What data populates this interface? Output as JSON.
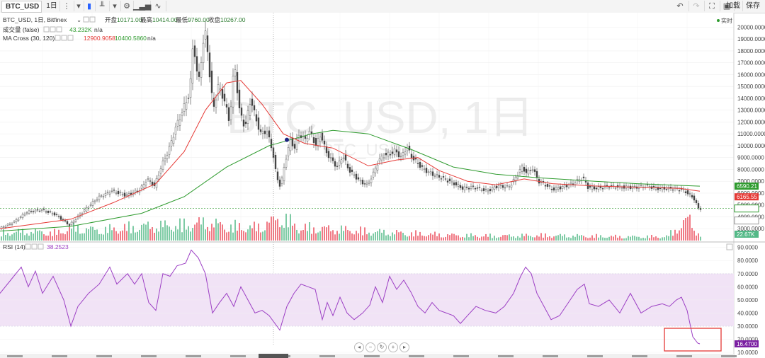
{
  "toolbar": {
    "symbol": "BTC_USD",
    "interval": "1日",
    "add_label": "加载",
    "save_label": "保存"
  },
  "legend": {
    "main": "BTC_USD, 1日, Bitfinex",
    "open_label": "开盘",
    "open": "10171.00",
    "high_label": "最高",
    "high": "10414.00",
    "low_label": "最低",
    "low": "9760.00",
    "close_label": "收盘",
    "close": "10267.00",
    "volume_label": "成交量 (false)",
    "volume_value": "43.232K",
    "volume_na": "n/a",
    "ma_label": "MA Cross (30, 120)",
    "ma_fast": "12900.9058",
    "ma_slow": "10400.5860",
    "ma_na": "n/a",
    "realtime": "实时"
  },
  "watermark": {
    "title": "BTC_USD, 1日",
    "sub": "BTC_USD"
  },
  "price_tags": {
    "ma_slow": "6590.21",
    "ma_fast": "6165.55",
    "last": "4705.40",
    "vol": "3810.75",
    "vol_count": "22.67K"
  },
  "rsi": {
    "label": "RSI (14)",
    "value_text": "38.2523",
    "current": "16.4700"
  },
  "colors": {
    "up": "#53b987",
    "down": "#eb4d5c",
    "ma_fast": "#e53935",
    "ma_slow": "#2e9b2e",
    "rsi": "#9c3fc4",
    "rsi_band": "#f1e3f6",
    "highlight": "#e53935",
    "tag_rsi": "#7b1fa2"
  },
  "chart_data": [
    {
      "type": "candlestick",
      "title": "BTC_USD, 1日, Bitfinex",
      "ylim": [
        2000,
        20500
      ],
      "y_ticks": [
        "20000.0000",
        "19000.0000",
        "18000.0000",
        "17000.0000",
        "16000.0000",
        "15000.0000",
        "14000.0000",
        "13000.0000",
        "12000.0000",
        "11000.0000",
        "10000.0000",
        "9000.0000",
        "8000.0000",
        "7000.0000",
        "6000.0000",
        "5000.0000",
        "4000.0000",
        "3000.0000"
      ],
      "price_path": [
        [
          0,
          3000
        ],
        [
          20,
          3500
        ],
        [
          40,
          4400
        ],
        [
          60,
          4600
        ],
        [
          80,
          4200
        ],
        [
          100,
          3300
        ],
        [
          120,
          4500
        ],
        [
          140,
          5600
        ],
        [
          160,
          6200
        ],
        [
          180,
          5800
        ],
        [
          200,
          6300
        ],
        [
          210,
          7200
        ],
        [
          220,
          6600
        ],
        [
          230,
          8300
        ],
        [
          240,
          9600
        ],
        [
          250,
          11500
        ],
        [
          260,
          13000
        ],
        [
          270,
          14500
        ],
        [
          275,
          19000
        ],
        [
          282,
          15000
        ],
        [
          288,
          18500
        ],
        [
          293,
          19500
        ],
        [
          298,
          16000
        ],
        [
          303,
          13000
        ],
        [
          310,
          15000
        ],
        [
          318,
          14000
        ],
        [
          326,
          12000
        ],
        [
          333,
          17000
        ],
        [
          340,
          13000
        ],
        [
          348,
          11500
        ],
        [
          356,
          14000
        ],
        [
          362,
          12500
        ],
        [
          370,
          11000
        ],
        [
          378,
          11300
        ],
        [
          386,
          9800
        ],
        [
          392,
          7500
        ],
        [
          398,
          6500
        ],
        [
          405,
          8800
        ],
        [
          412,
          10500
        ],
        [
          418,
          9800
        ],
        [
          424,
          11000
        ],
        [
          432,
          10500
        ],
        [
          440,
          11200
        ],
        [
          448,
          10000
        ],
        [
          455,
          11000
        ],
        [
          462,
          9500
        ],
        [
          470,
          8800
        ],
        [
          478,
          8200
        ],
        [
          486,
          9200
        ],
        [
          494,
          8000
        ],
        [
          502,
          7500
        ],
        [
          510,
          7000
        ],
        [
          520,
          6700
        ],
        [
          528,
          7500
        ],
        [
          536,
          8700
        ],
        [
          544,
          9200
        ],
        [
          552,
          9300
        ],
        [
          560,
          9600
        ],
        [
          568,
          9000
        ],
        [
          576,
          9900
        ],
        [
          584,
          9000
        ],
        [
          592,
          8500
        ],
        [
          600,
          8000
        ],
        [
          612,
          7600
        ],
        [
          625,
          7300
        ],
        [
          640,
          6900
        ],
        [
          655,
          6400
        ],
        [
          670,
          6500
        ],
        [
          690,
          6200
        ],
        [
          705,
          6600
        ],
        [
          720,
          6500
        ],
        [
          730,
          7300
        ],
        [
          738,
          8200
        ],
        [
          746,
          7700
        ],
        [
          754,
          8100
        ],
        [
          762,
          7000
        ],
        [
          772,
          6700
        ],
        [
          782,
          6300
        ],
        [
          795,
          6500
        ],
        [
          810,
          6800
        ],
        [
          825,
          7300
        ],
        [
          832,
          6500
        ],
        [
          845,
          6400
        ],
        [
          860,
          6600
        ],
        [
          880,
          6500
        ],
        [
          900,
          6500
        ],
        [
          915,
          6600
        ],
        [
          930,
          6400
        ],
        [
          950,
          6400
        ],
        [
          965,
          6300
        ],
        [
          975,
          5900
        ],
        [
          982,
          5500
        ],
        [
          988,
          4700
        ]
      ],
      "volume_path": [
        [
          0,
          0.3
        ],
        [
          40,
          0.35
        ],
        [
          80,
          0.3
        ],
        [
          100,
          0.5
        ],
        [
          140,
          0.4
        ],
        [
          200,
          0.55
        ],
        [
          260,
          0.6
        ],
        [
          290,
          0.7
        ],
        [
          320,
          0.55
        ],
        [
          360,
          0.5
        ],
        [
          398,
          0.9
        ],
        [
          420,
          0.5
        ],
        [
          470,
          0.45
        ],
        [
          520,
          0.35
        ],
        [
          560,
          0.3
        ],
        [
          600,
          0.25
        ],
        [
          650,
          0.2
        ],
        [
          700,
          0.18
        ],
        [
          760,
          0.2
        ],
        [
          820,
          0.18
        ],
        [
          880,
          0.15
        ],
        [
          940,
          0.15
        ],
        [
          972,
          0.85
        ],
        [
          980,
          0.4
        ],
        [
          988,
          0.25
        ]
      ],
      "ma_fast_path": [
        [
          0,
          3000
        ],
        [
          100,
          3800
        ],
        [
          160,
          5200
        ],
        [
          220,
          6800
        ],
        [
          260,
          9500
        ],
        [
          290,
          13000
        ],
        [
          320,
          15300
        ],
        [
          340,
          15500
        ],
        [
          370,
          13500
        ],
        [
          400,
          11000
        ],
        [
          430,
          10200
        ],
        [
          470,
          9800
        ],
        [
          520,
          8300
        ],
        [
          560,
          8800
        ],
        [
          590,
          9000
        ],
        [
          620,
          7900
        ],
        [
          660,
          7000
        ],
        [
          700,
          6700
        ],
        [
          740,
          7200
        ],
        [
          780,
          6800
        ],
        [
          840,
          6600
        ],
        [
          900,
          6500
        ],
        [
          960,
          6400
        ],
        [
          988,
          6166
        ]
      ],
      "ma_slow_path": [
        [
          0,
          2800
        ],
        [
          100,
          3200
        ],
        [
          200,
          4300
        ],
        [
          260,
          5700
        ],
        [
          320,
          8200
        ],
        [
          380,
          10000
        ],
        [
          440,
          11000
        ],
        [
          470,
          11300
        ],
        [
          520,
          11000
        ],
        [
          580,
          9700
        ],
        [
          640,
          8200
        ],
        [
          700,
          7600
        ],
        [
          760,
          7300
        ],
        [
          840,
          7000
        ],
        [
          900,
          6800
        ],
        [
          988,
          6590
        ]
      ],
      "marker": [
        405,
        10500
      ]
    },
    {
      "type": "line",
      "title": "RSI (14)",
      "ylim": [
        10,
        92
      ],
      "y_ticks": [
        "90.0000",
        "80.0000",
        "70.0000",
        "60.0000",
        "50.0000",
        "40.0000",
        "30.0000",
        "20.0000",
        "10.0000"
      ],
      "band": [
        30,
        70
      ],
      "series": [
        [
          0,
          55
        ],
        [
          15,
          65
        ],
        [
          30,
          75
        ],
        [
          40,
          60
        ],
        [
          50,
          72
        ],
        [
          60,
          55
        ],
        [
          75,
          68
        ],
        [
          90,
          50
        ],
        [
          100,
          30
        ],
        [
          110,
          45
        ],
        [
          125,
          55
        ],
        [
          140,
          62
        ],
        [
          155,
          75
        ],
        [
          165,
          62
        ],
        [
          180,
          70
        ],
        [
          190,
          62
        ],
        [
          200,
          70
        ],
        [
          210,
          48
        ],
        [
          220,
          42
        ],
        [
          230,
          70
        ],
        [
          240,
          68
        ],
        [
          250,
          76
        ],
        [
          262,
          78
        ],
        [
          270,
          88
        ],
        [
          280,
          82
        ],
        [
          290,
          70
        ],
        [
          300,
          40
        ],
        [
          310,
          48
        ],
        [
          320,
          55
        ],
        [
          330,
          45
        ],
        [
          340,
          60
        ],
        [
          350,
          50
        ],
        [
          360,
          40
        ],
        [
          370,
          42
        ],
        [
          380,
          38
        ],
        [
          395,
          27
        ],
        [
          405,
          45
        ],
        [
          415,
          55
        ],
        [
          425,
          62
        ],
        [
          435,
          60
        ],
        [
          445,
          58
        ],
        [
          455,
          35
        ],
        [
          462,
          48
        ],
        [
          470,
          38
        ],
        [
          480,
          52
        ],
        [
          490,
          40
        ],
        [
          500,
          35
        ],
        [
          512,
          40
        ],
        [
          522,
          46
        ],
        [
          530,
          60
        ],
        [
          540,
          48
        ],
        [
          550,
          68
        ],
        [
          560,
          58
        ],
        [
          570,
          65
        ],
        [
          580,
          56
        ],
        [
          590,
          45
        ],
        [
          600,
          40
        ],
        [
          610,
          48
        ],
        [
          620,
          42
        ],
        [
          630,
          40
        ],
        [
          640,
          38
        ],
        [
          650,
          32
        ],
        [
          660,
          38
        ],
        [
          672,
          45
        ],
        [
          685,
          42
        ],
        [
          700,
          40
        ],
        [
          712,
          45
        ],
        [
          725,
          55
        ],
        [
          735,
          68
        ],
        [
          742,
          75
        ],
        [
          750,
          70
        ],
        [
          758,
          55
        ],
        [
          768,
          45
        ],
        [
          778,
          35
        ],
        [
          790,
          38
        ],
        [
          805,
          50
        ],
        [
          815,
          58
        ],
        [
          825,
          62
        ],
        [
          832,
          47
        ],
        [
          845,
          45
        ],
        [
          860,
          50
        ],
        [
          875,
          40
        ],
        [
          890,
          55
        ],
        [
          905,
          40
        ],
        [
          920,
          45
        ],
        [
          935,
          47
        ],
        [
          945,
          45
        ],
        [
          955,
          50
        ],
        [
          962,
          52
        ],
        [
          970,
          42
        ],
        [
          978,
          22
        ],
        [
          985,
          17
        ],
        [
          988,
          16.47
        ]
      ]
    }
  ]
}
